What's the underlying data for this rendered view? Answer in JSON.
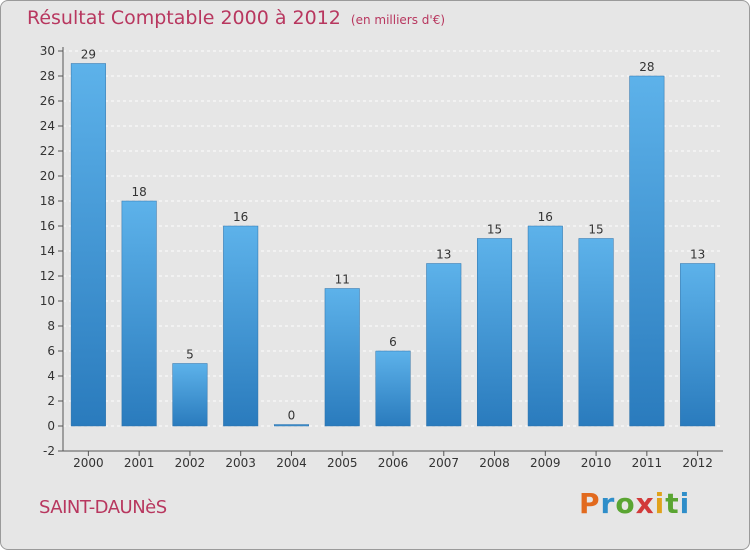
{
  "title": "Résultat Comptable 2000 à 2012",
  "subtitle": "(en milliers d'€)",
  "commune": "SAINT-DAUNèS",
  "brand": {
    "letters": [
      "P",
      "r",
      "o",
      "x",
      "i",
      "t",
      "i"
    ],
    "colors": [
      "#e26a1e",
      "#2f8ec9",
      "#5aa532",
      "#d23a3a",
      "#e0a21c",
      "#5aa532",
      "#2f8ec9"
    ]
  },
  "colors": {
    "bar_top": "#5db2ea",
    "bar_bottom": "#2a7bbd",
    "title": "#b8375f"
  },
  "chart_data": {
    "type": "bar",
    "title": "Résultat Comptable 2000 à 2012",
    "subtitle": "(en milliers d'€)",
    "categories": [
      "2000",
      "2001",
      "2002",
      "2003",
      "2004",
      "2005",
      "2006",
      "2007",
      "2008",
      "2009",
      "2010",
      "2011",
      "2012"
    ],
    "values": [
      29,
      18,
      5,
      16,
      0,
      11,
      6,
      13,
      15,
      16,
      15,
      28,
      13
    ],
    "ylim": [
      -2,
      30
    ],
    "yticks": [
      -2,
      0,
      2,
      4,
      6,
      8,
      10,
      12,
      14,
      16,
      18,
      20,
      22,
      24,
      26,
      28,
      30
    ],
    "grid": true
  }
}
